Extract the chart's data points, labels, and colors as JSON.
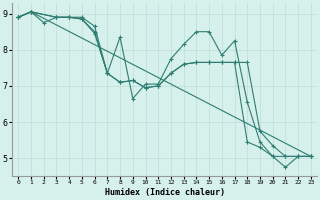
{
  "xlabel": "Humidex (Indice chaleur)",
  "background_color": "#d6f0ec",
  "grid_color": "#c0ddd8",
  "line_color": "#2e7d72",
  "xlim": [
    -0.5,
    23.5
  ],
  "ylim": [
    4.5,
    9.3
  ],
  "yticks": [
    5,
    6,
    7,
    8,
    9
  ],
  "xticks": [
    0,
    1,
    2,
    3,
    4,
    5,
    6,
    7,
    8,
    9,
    10,
    11,
    12,
    13,
    14,
    15,
    16,
    17,
    18,
    19,
    20,
    21,
    22,
    23
  ],
  "line1_x": [
    0,
    1,
    2,
    3,
    4,
    5,
    6,
    7,
    8,
    9,
    10,
    11,
    12,
    13,
    14,
    15,
    16,
    17,
    18,
    19,
    20,
    21,
    22,
    23
  ],
  "line1_y": [
    8.9,
    9.05,
    8.75,
    8.9,
    8.9,
    8.85,
    8.45,
    7.35,
    8.35,
    6.65,
    7.05,
    7.05,
    7.75,
    8.15,
    8.5,
    8.5,
    7.85,
    8.25,
    6.55,
    5.45,
    5.05,
    4.75,
    5.05,
    5.05
  ],
  "line2_x": [
    0,
    1,
    3,
    4,
    5,
    6,
    7,
    8,
    9,
    10,
    11,
    12,
    13,
    14,
    15,
    16,
    17,
    18,
    19,
    20,
    21,
    22,
    23
  ],
  "line2_y": [
    8.9,
    9.05,
    8.9,
    8.9,
    8.9,
    8.65,
    7.35,
    7.1,
    7.15,
    6.95,
    7.0,
    7.35,
    7.6,
    7.65,
    7.65,
    7.65,
    7.65,
    7.65,
    5.75,
    5.35,
    5.05,
    5.05,
    5.05
  ],
  "line3_x": [
    0,
    1,
    3,
    4,
    5,
    6,
    7,
    8,
    9,
    10,
    11,
    12,
    13,
    14,
    15,
    16,
    17,
    18,
    19,
    20,
    21,
    22,
    23
  ],
  "line3_y": [
    8.9,
    9.05,
    8.9,
    8.9,
    8.85,
    8.5,
    7.35,
    7.1,
    7.15,
    6.95,
    7.0,
    7.35,
    7.6,
    7.65,
    7.65,
    7.65,
    7.65,
    5.45,
    5.3,
    5.05,
    5.05,
    5.05,
    5.05
  ],
  "line4_x": [
    0,
    1,
    23
  ],
  "line4_y": [
    8.9,
    9.05,
    5.05
  ]
}
